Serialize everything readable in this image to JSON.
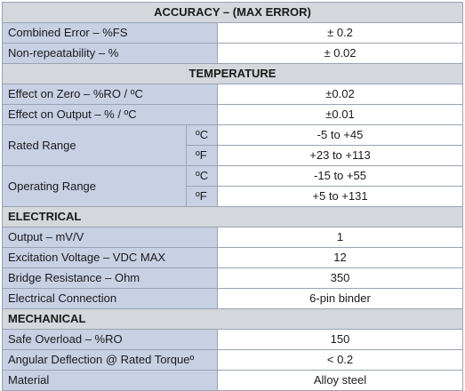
{
  "sections": {
    "accuracy": {
      "title": "ACCURACY – (MAX ERROR)",
      "rows": [
        {
          "label": "Combined Error – %FS",
          "value": "± 0.2"
        },
        {
          "label": "Non-repeatability – %",
          "value": "± 0.02"
        }
      ]
    },
    "temperature": {
      "title": "TEMPERATURE",
      "rows": [
        {
          "label": "Effect on Zero – %RO / ºC",
          "value": "±0.02"
        },
        {
          "label": "Effect on Output – % / ºC",
          "value": "±0.01"
        }
      ],
      "rated_range": {
        "label": "Rated Range",
        "c_unit": "ºC",
        "c_value": "-5 to +45",
        "f_unit": "ºF",
        "f_value": "+23 to +113"
      },
      "operating_range": {
        "label": "Operating Range",
        "c_unit": "ºC",
        "c_value": "-15 to +55",
        "f_unit": "ºF",
        "f_value": "+5 to +131"
      }
    },
    "electrical": {
      "title": "ELECTRICAL",
      "rows": [
        {
          "label": "Output – mV/V",
          "value": "1"
        },
        {
          "label": "Excitation Voltage – VDC MAX",
          "value": "12"
        },
        {
          "label": "Bridge Resistance – Ohm",
          "value": "350"
        },
        {
          "label": "Electrical Connection",
          "value": "6-pin binder"
        }
      ]
    },
    "mechanical": {
      "title": "MECHANICAL",
      "rows": [
        {
          "label": "Safe Overload – %RO",
          "value": "150"
        },
        {
          "label": "Angular Deflection @ Rated Torqueº",
          "value": "< 0.2"
        },
        {
          "label": "Material",
          "value": "Alloy steel"
        }
      ]
    }
  }
}
